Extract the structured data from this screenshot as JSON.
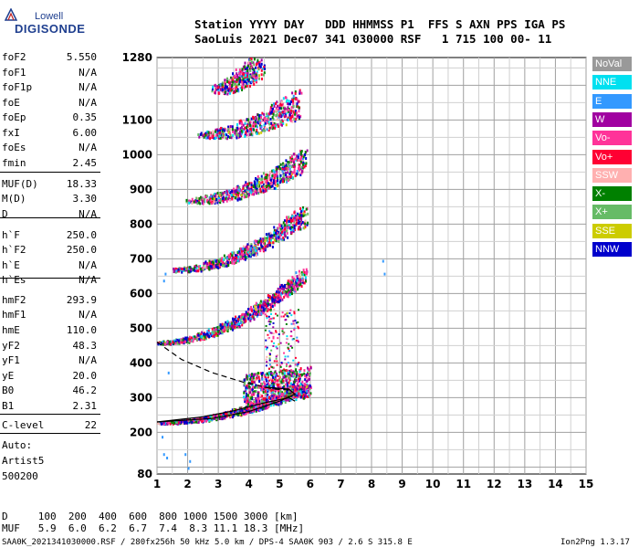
{
  "logo": {
    "line1": "Lowell",
    "line2": "DIGISONDE"
  },
  "header": {
    "line1": "Station YYYY DAY   DDD HHMMSS P1  FFS S AXN PPS IGA PS",
    "line2": "SaoLuis 2021 Dec07 341 030000 RSF   1 715 100 00- 11"
  },
  "params": [
    {
      "name": "foF2",
      "value": "5.550"
    },
    {
      "name": "foF1",
      "value": "N/A"
    },
    {
      "name": "foF1p",
      "value": "N/A"
    },
    {
      "name": "foE",
      "value": "N/A"
    },
    {
      "name": "foEp",
      "value": "0.35"
    },
    {
      "name": "fxI",
      "value": "6.00"
    },
    {
      "name": "foEs",
      "value": "N/A"
    },
    {
      "name": "fmin",
      "value": "2.45"
    },
    {
      "name": "MUF(D)",
      "value": "18.33"
    },
    {
      "name": "M(D)",
      "value": "3.30"
    },
    {
      "name": "D",
      "value": "N/A"
    },
    {
      "name": "h`F",
      "value": "250.0"
    },
    {
      "name": "h`F2",
      "value": "250.0"
    },
    {
      "name": "h`E",
      "value": "N/A"
    },
    {
      "name": "h`Es",
      "value": "N/A"
    },
    {
      "name": "hmF2",
      "value": "293.9"
    },
    {
      "name": "hmF1",
      "value": "N/A"
    },
    {
      "name": "hmE",
      "value": "110.0"
    },
    {
      "name": "yF2",
      "value": "48.3"
    },
    {
      "name": "yF1",
      "value": "N/A"
    },
    {
      "name": "yE",
      "value": "20.0"
    },
    {
      "name": "B0",
      "value": "46.2"
    },
    {
      "name": "B1",
      "value": "2.31"
    },
    {
      "name": "C-level",
      "value": "22"
    }
  ],
  "auto": {
    "line1": "Auto:",
    "line2": "Artist5",
    "line3": "500200"
  },
  "legend": [
    {
      "label": "NoVal",
      "color": "#999999"
    },
    {
      "label": "NNE",
      "color": "#00e0f0"
    },
    {
      "label": "E",
      "color": "#3399ff"
    },
    {
      "label": "W",
      "color": "#a000a0"
    },
    {
      "label": "Vo-",
      "color": "#ff3399"
    },
    {
      "label": "Vo+",
      "color": "#ff0033"
    },
    {
      "label": "SSW",
      "color": "#ffb0b0"
    },
    {
      "label": "X-",
      "color": "#008000"
    },
    {
      "label": "X+",
      "color": "#66bb66"
    },
    {
      "label": "SSE",
      "color": "#cccc00"
    },
    {
      "label": "NNW",
      "color": "#0000cc"
    }
  ],
  "bottom": {
    "d_row": "D     100  200  400  600  800 1000 1500 3000 [km]",
    "muf_row": "MUF   5.9  6.0  6.2  6.7  7.4  8.3 11.1 18.3 [MHz]"
  },
  "footer": {
    "left": "SAA0K_2021341030000.RSF / 280fx256h 50 kHz 5.0 km / DPS-4 SAA0K 903 / 2.6 S 315.8 E",
    "right": "Ion2Png 1.3.17"
  },
  "chart_data": {
    "type": "scatter",
    "title": "",
    "xlabel": "",
    "ylabel": "",
    "xlim": [
      1,
      15
    ],
    "ylim": [
      80,
      1280
    ],
    "x_ticks": [
      1,
      2,
      3,
      4,
      5,
      6,
      7,
      8,
      9,
      10,
      11,
      12,
      13,
      14,
      15
    ],
    "y_ticks": [
      80,
      200,
      300,
      400,
      500,
      600,
      700,
      800,
      900,
      1000,
      1100,
      1280
    ],
    "grid": true,
    "legend_position": "right",
    "traces": [
      {
        "name": "1-hop",
        "f0": 1.0,
        "f1": 5.8,
        "h0": 230,
        "h1": 330
      },
      {
        "name": "2-hop",
        "f0": 1.0,
        "f1": 5.8,
        "h0": 460,
        "h1": 660
      },
      {
        "name": "3-hop",
        "f0": 1.5,
        "f1": 5.8,
        "h0": 670,
        "h1": 830
      },
      {
        "name": "4-hop",
        "f0": 2.0,
        "f1": 5.8,
        "h0": 870,
        "h1": 990
      },
      {
        "name": "5-hop",
        "f0": 2.4,
        "f1": 5.6,
        "h0": 1060,
        "h1": 1150
      },
      {
        "name": "6-hop",
        "f0": 2.8,
        "f1": 4.4,
        "h0": 1190,
        "h1": 1280
      }
    ],
    "profile_line": [
      [
        1.0,
        230
      ],
      [
        2.5,
        245
      ],
      [
        3.5,
        262
      ],
      [
        4.5,
        285
      ],
      [
        5.3,
        300
      ],
      [
        5.5,
        290
      ]
    ],
    "extraordinary_line": [
      [
        1.0,
        230
      ],
      [
        2.8,
        240
      ],
      [
        4.0,
        260
      ],
      [
        5.0,
        290
      ],
      [
        5.5,
        310
      ],
      [
        5.3,
        325
      ],
      [
        4.5,
        330
      ]
    ],
    "dashed_line": [
      [
        1.0,
        460
      ],
      [
        1.8,
        410
      ],
      [
        2.8,
        372
      ],
      [
        3.8,
        345
      ],
      [
        4.8,
        325
      ],
      [
        5.3,
        322
      ]
    ]
  }
}
